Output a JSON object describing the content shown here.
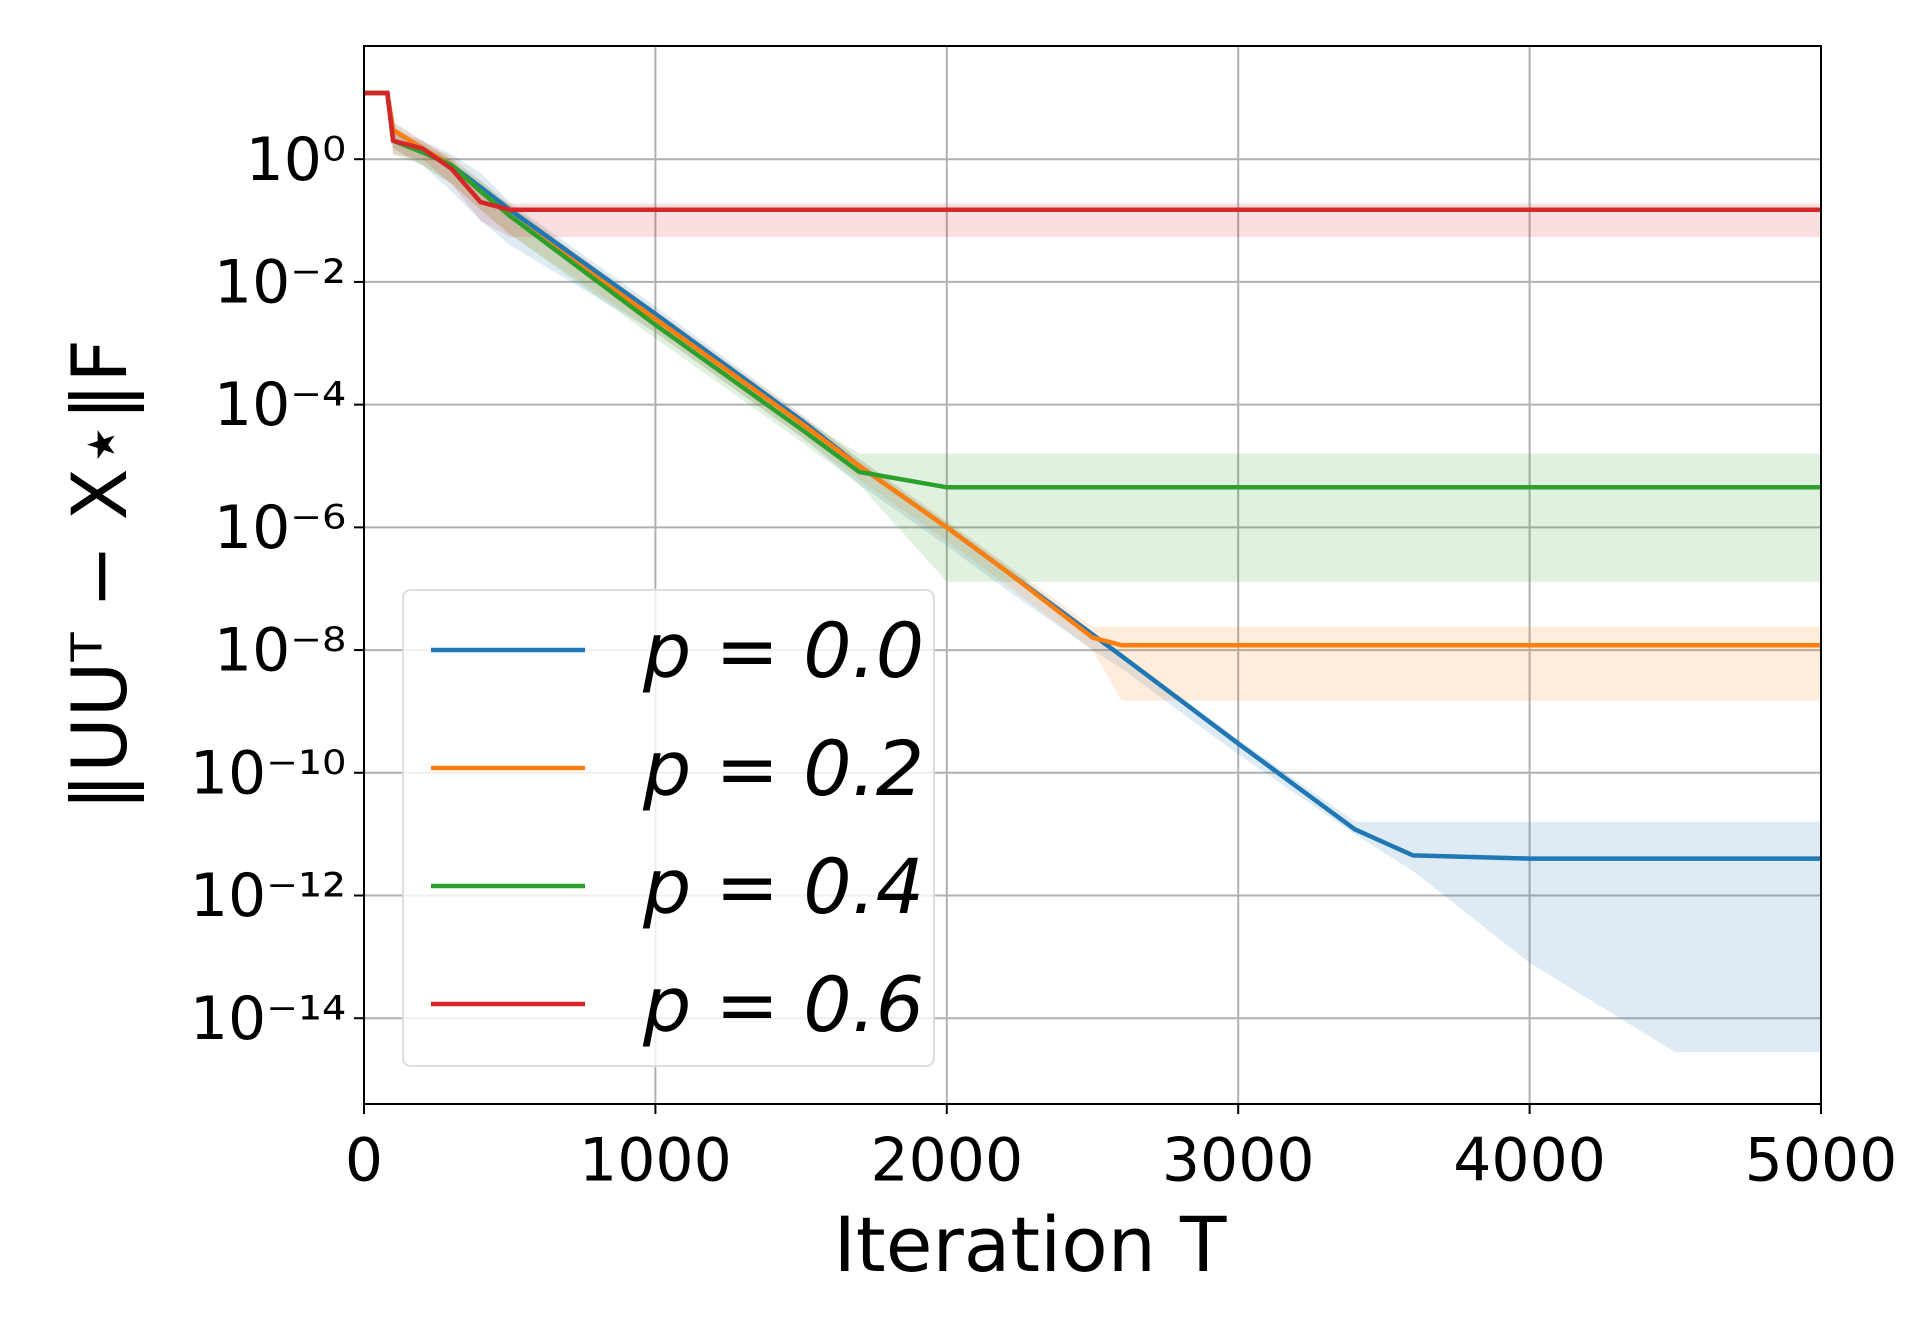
{
  "chart_data": {
    "type": "line",
    "y_label": "‖UUᵀ − X⋆‖F",
    "x_label": "Iteration T",
    "log_y": true,
    "grid": true,
    "legend": "lower left",
    "x": [
      0,
      80,
      100,
      200,
      300,
      400,
      500,
      1000,
      1500,
      1700,
      2000,
      2200,
      2500,
      2600,
      3000,
      3400,
      3600,
      4000,
      4500,
      5000
    ],
    "xlim": [
      0,
      5000
    ],
    "xticks": [
      0,
      1000,
      2000,
      3000,
      4000,
      5000
    ],
    "ylim": [
      4e-16,
      70
    ],
    "yticks": [
      {
        "value": 1,
        "label": "10⁰"
      },
      {
        "value": 0.01,
        "label": "10⁻²"
      },
      {
        "value": 0.0001,
        "label": "10⁻⁴"
      },
      {
        "value": 1e-06,
        "label": "10⁻⁶"
      },
      {
        "value": 1e-08,
        "label": "10⁻⁸"
      },
      {
        "value": 1e-10,
        "label": "10⁻¹⁰"
      },
      {
        "value": 1e-12,
        "label": "10⁻¹²"
      },
      {
        "value": 1e-14,
        "label": "10⁻¹⁴"
      }
    ],
    "series": [
      {
        "name": "p = 0.0",
        "color": "#1f77b4",
        "values": [
          12,
          12,
          3,
          1.5,
          0.8,
          0.35,
          0.15,
          0.003,
          5.6e-05,
          1e-05,
          1e-06,
          2e-07,
          1.8e-08,
          8e-09,
          3e-10,
          1.2e-11,
          4.5e-12,
          4e-12,
          4e-12,
          4e-12
        ],
        "lower": [
          12,
          12,
          1.5,
          0.8,
          0.3,
          0.1,
          0.04,
          0.0015,
          3e-05,
          5e-06,
          5e-07,
          1e-07,
          1e-08,
          5e-09,
          2e-10,
          1e-11,
          2.5e-12,
          8e-14,
          2.8e-15,
          2.8e-15
        ],
        "upper": [
          12,
          12,
          4,
          2,
          1.2,
          0.6,
          0.2,
          0.004,
          7e-05,
          1.3e-05,
          1.2e-06,
          2.5e-07,
          2e-08,
          9e-09,
          3.5e-10,
          1.6e-11,
          1.6e-11,
          1.6e-11,
          1.6e-11,
          1.6e-11
        ]
      },
      {
        "name": "p = 0.2",
        "color": "#ff7f0e",
        "values": [
          12,
          12,
          3,
          1.5,
          0.8,
          0.3,
          0.12,
          0.0025,
          5e-05,
          1e-05,
          1e-06,
          2e-07,
          1.6e-08,
          1.2e-08,
          1.2e-08,
          1.2e-08,
          1.2e-08,
          1.2e-08,
          1.2e-08,
          1.2e-08
        ],
        "lower": [
          12,
          12,
          1.5,
          0.8,
          0.4,
          0.15,
          0.06,
          0.0015,
          3e-05,
          6e-06,
          6e-07,
          1.2e-07,
          1e-08,
          1.5e-09,
          1.5e-09,
          1.5e-09,
          1.5e-09,
          1.5e-09,
          1.5e-09,
          1.5e-09
        ],
        "upper": [
          12,
          12,
          4,
          2,
          1.1,
          0.45,
          0.18,
          0.0035,
          7e-05,
          1.3e-05,
          1.3e-06,
          2.6e-07,
          2.4e-08,
          2.4e-08,
          2.4e-08,
          2.4e-08,
          2.4e-08,
          2.4e-08,
          2.4e-08,
          2.4e-08
        ]
      },
      {
        "name": "p = 0.4",
        "color": "#2ca02c",
        "values": [
          12,
          12,
          2,
          1.3,
          0.8,
          0.3,
          0.12,
          0.002,
          4e-05,
          8e-06,
          4.5e-06,
          4.5e-06,
          4.5e-06,
          4.5e-06,
          4.5e-06,
          4.5e-06,
          4.5e-06,
          4.5e-06,
          4.5e-06,
          4.5e-06
        ],
        "lower": [
          12,
          12,
          1.2,
          0.8,
          0.4,
          0.15,
          0.06,
          0.0012,
          2.5e-05,
          5e-06,
          1.3e-07,
          1.3e-07,
          1.3e-07,
          1.3e-07,
          1.3e-07,
          1.3e-07,
          1.3e-07,
          1.3e-07,
          1.3e-07,
          1.3e-07
        ],
        "upper": [
          12,
          12,
          3,
          1.8,
          1,
          0.45,
          0.18,
          0.003,
          6e-05,
          1.6e-05,
          1.6e-05,
          1.6e-05,
          1.6e-05,
          1.6e-05,
          1.6e-05,
          1.6e-05,
          1.6e-05,
          1.6e-05,
          1.6e-05,
          1.6e-05
        ]
      },
      {
        "name": "p = 0.6",
        "color": "#d62728",
        "values": [
          12,
          12,
          2,
          1.5,
          0.7,
          0.2,
          0.15,
          0.15,
          0.15,
          0.15,
          0.15,
          0.15,
          0.15,
          0.15,
          0.15,
          0.15,
          0.15,
          0.15,
          0.15,
          0.15
        ],
        "lower": [
          12,
          12,
          1.2,
          1,
          0.4,
          0.1,
          0.054,
          0.054,
          0.054,
          0.054,
          0.054,
          0.054,
          0.054,
          0.054,
          0.054,
          0.054,
          0.054,
          0.054,
          0.054,
          0.054
        ],
        "upper": [
          12,
          12,
          3,
          2,
          1,
          0.3,
          0.19,
          0.19,
          0.19,
          0.19,
          0.19,
          0.19,
          0.19,
          0.19,
          0.19,
          0.19,
          0.19,
          0.19,
          0.19,
          0.19
        ]
      }
    ]
  }
}
